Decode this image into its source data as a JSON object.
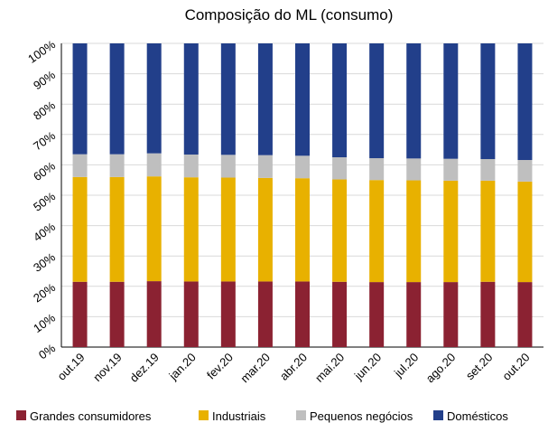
{
  "chart_data": {
    "type": "stacked_bar",
    "title": "Composição do ML (consumo)",
    "categories": [
      "out.19",
      "nov.19",
      "dez.19",
      "jan.20",
      "fev.20",
      "mar.20",
      "abr.20",
      "mai.20",
      "jun.20",
      "jul.20",
      "ago.20",
      "set.20",
      "out.20"
    ],
    "series": [
      {
        "name": "Grandes consumidores",
        "color": "#8b2232",
        "values": [
          21.5,
          21.5,
          21.7,
          21.6,
          21.6,
          21.6,
          21.6,
          21.5,
          21.4,
          21.4,
          21.4,
          21.5,
          21.4
        ]
      },
      {
        "name": "Industriais",
        "color": "#e8b100",
        "values": [
          34.5,
          34.5,
          34.5,
          34.3,
          34.2,
          34.1,
          34.0,
          33.7,
          33.6,
          33.5,
          33.4,
          33.3,
          33.1
        ]
      },
      {
        "name": "Pequenos negócios",
        "color": "#bfbfbf",
        "values": [
          7.5,
          7.5,
          7.6,
          7.5,
          7.5,
          7.5,
          7.4,
          7.3,
          7.2,
          7.2,
          7.2,
          7.1,
          7.1
        ]
      },
      {
        "name": "Domésticos",
        "color": "#223f8a",
        "values": [
          36.5,
          36.5,
          36.2,
          36.6,
          36.7,
          36.8,
          37.0,
          37.5,
          37.8,
          37.9,
          38.0,
          38.1,
          38.4
        ]
      }
    ],
    "ylim": [
      0,
      100
    ],
    "yticks": [
      {
        "value": 0,
        "label": "0%"
      },
      {
        "value": 10,
        "label": "10%"
      },
      {
        "value": 20,
        "label": "20%"
      },
      {
        "value": 30,
        "label": "30%"
      },
      {
        "value": 40,
        "label": "40%"
      },
      {
        "value": 50,
        "label": "50%"
      },
      {
        "value": 60,
        "label": "60%"
      },
      {
        "value": 70,
        "label": "70%"
      },
      {
        "value": 80,
        "label": "80%"
      },
      {
        "value": 90,
        "label": "90%"
      },
      {
        "value": 100,
        "label": "100%"
      }
    ],
    "grid": true,
    "legend": "bottom"
  }
}
